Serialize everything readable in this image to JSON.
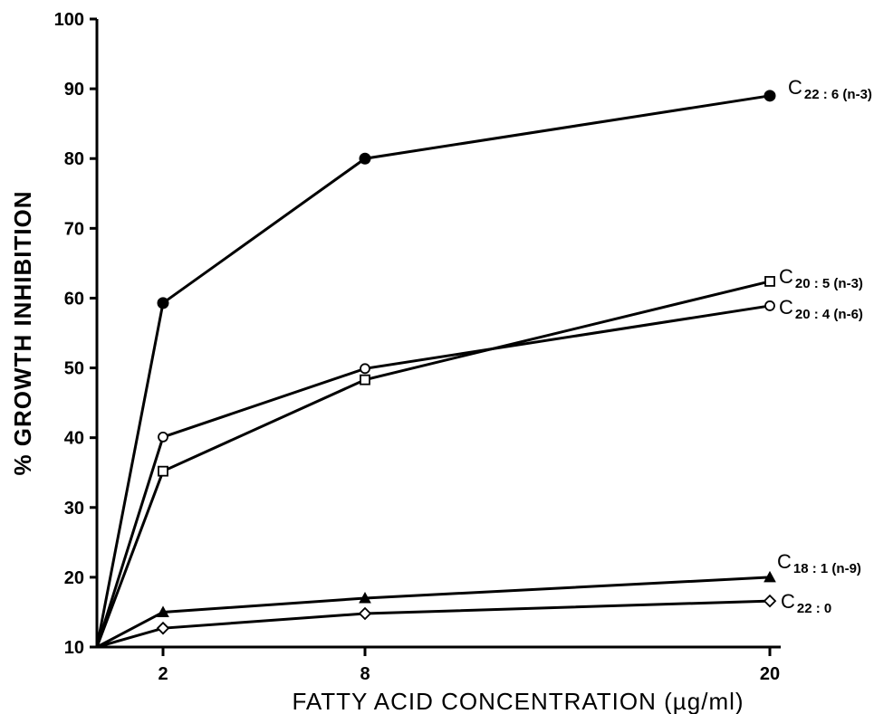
{
  "chart_data": {
    "type": "line",
    "xlabel": "FATTY ACID CONCENTRATION (µg/ml)",
    "ylabel": "% GROWTH INHIBITION",
    "ylim": [
      10,
      100
    ],
    "y_ticks": [
      10,
      20,
      30,
      40,
      50,
      60,
      70,
      80,
      90,
      100
    ],
    "x_ticks": [
      2,
      8,
      20
    ],
    "x_tick_labels": [
      "2",
      "8",
      "20"
    ],
    "x": [
      "0",
      "2",
      "8",
      "20"
    ],
    "grid": false,
    "series": [
      {
        "name": "C22 : 6 (n-3)",
        "label_main": "C",
        "label_sub": "22 : 6 (n-3)",
        "marker": "filled-circle",
        "values": [
          10,
          59.3,
          80,
          89
        ]
      },
      {
        "name": "C20 : 5 (n-3)",
        "label_main": "C",
        "label_sub": "20 : 5 (n-3)",
        "marker": "open-square",
        "values": [
          10,
          35.2,
          48.3,
          62.4
        ]
      },
      {
        "name": "C20 : 4 (n-6)",
        "label_main": "C",
        "label_sub": "20 : 4 (n-6)",
        "marker": "open-circle",
        "values": [
          10,
          40.1,
          49.9,
          58.9
        ]
      },
      {
        "name": "C18 : 1 (n-9)",
        "label_main": "C",
        "label_sub": "18 : 1 (n-9)",
        "marker": "filled-triangle",
        "values": [
          10,
          15,
          17,
          20
        ]
      },
      {
        "name": "C22 : 0",
        "label_main": "C",
        "label_sub": "22 : 0",
        "marker": "open-diamond",
        "values": [
          10,
          12.7,
          14.8,
          16.6
        ]
      }
    ]
  }
}
